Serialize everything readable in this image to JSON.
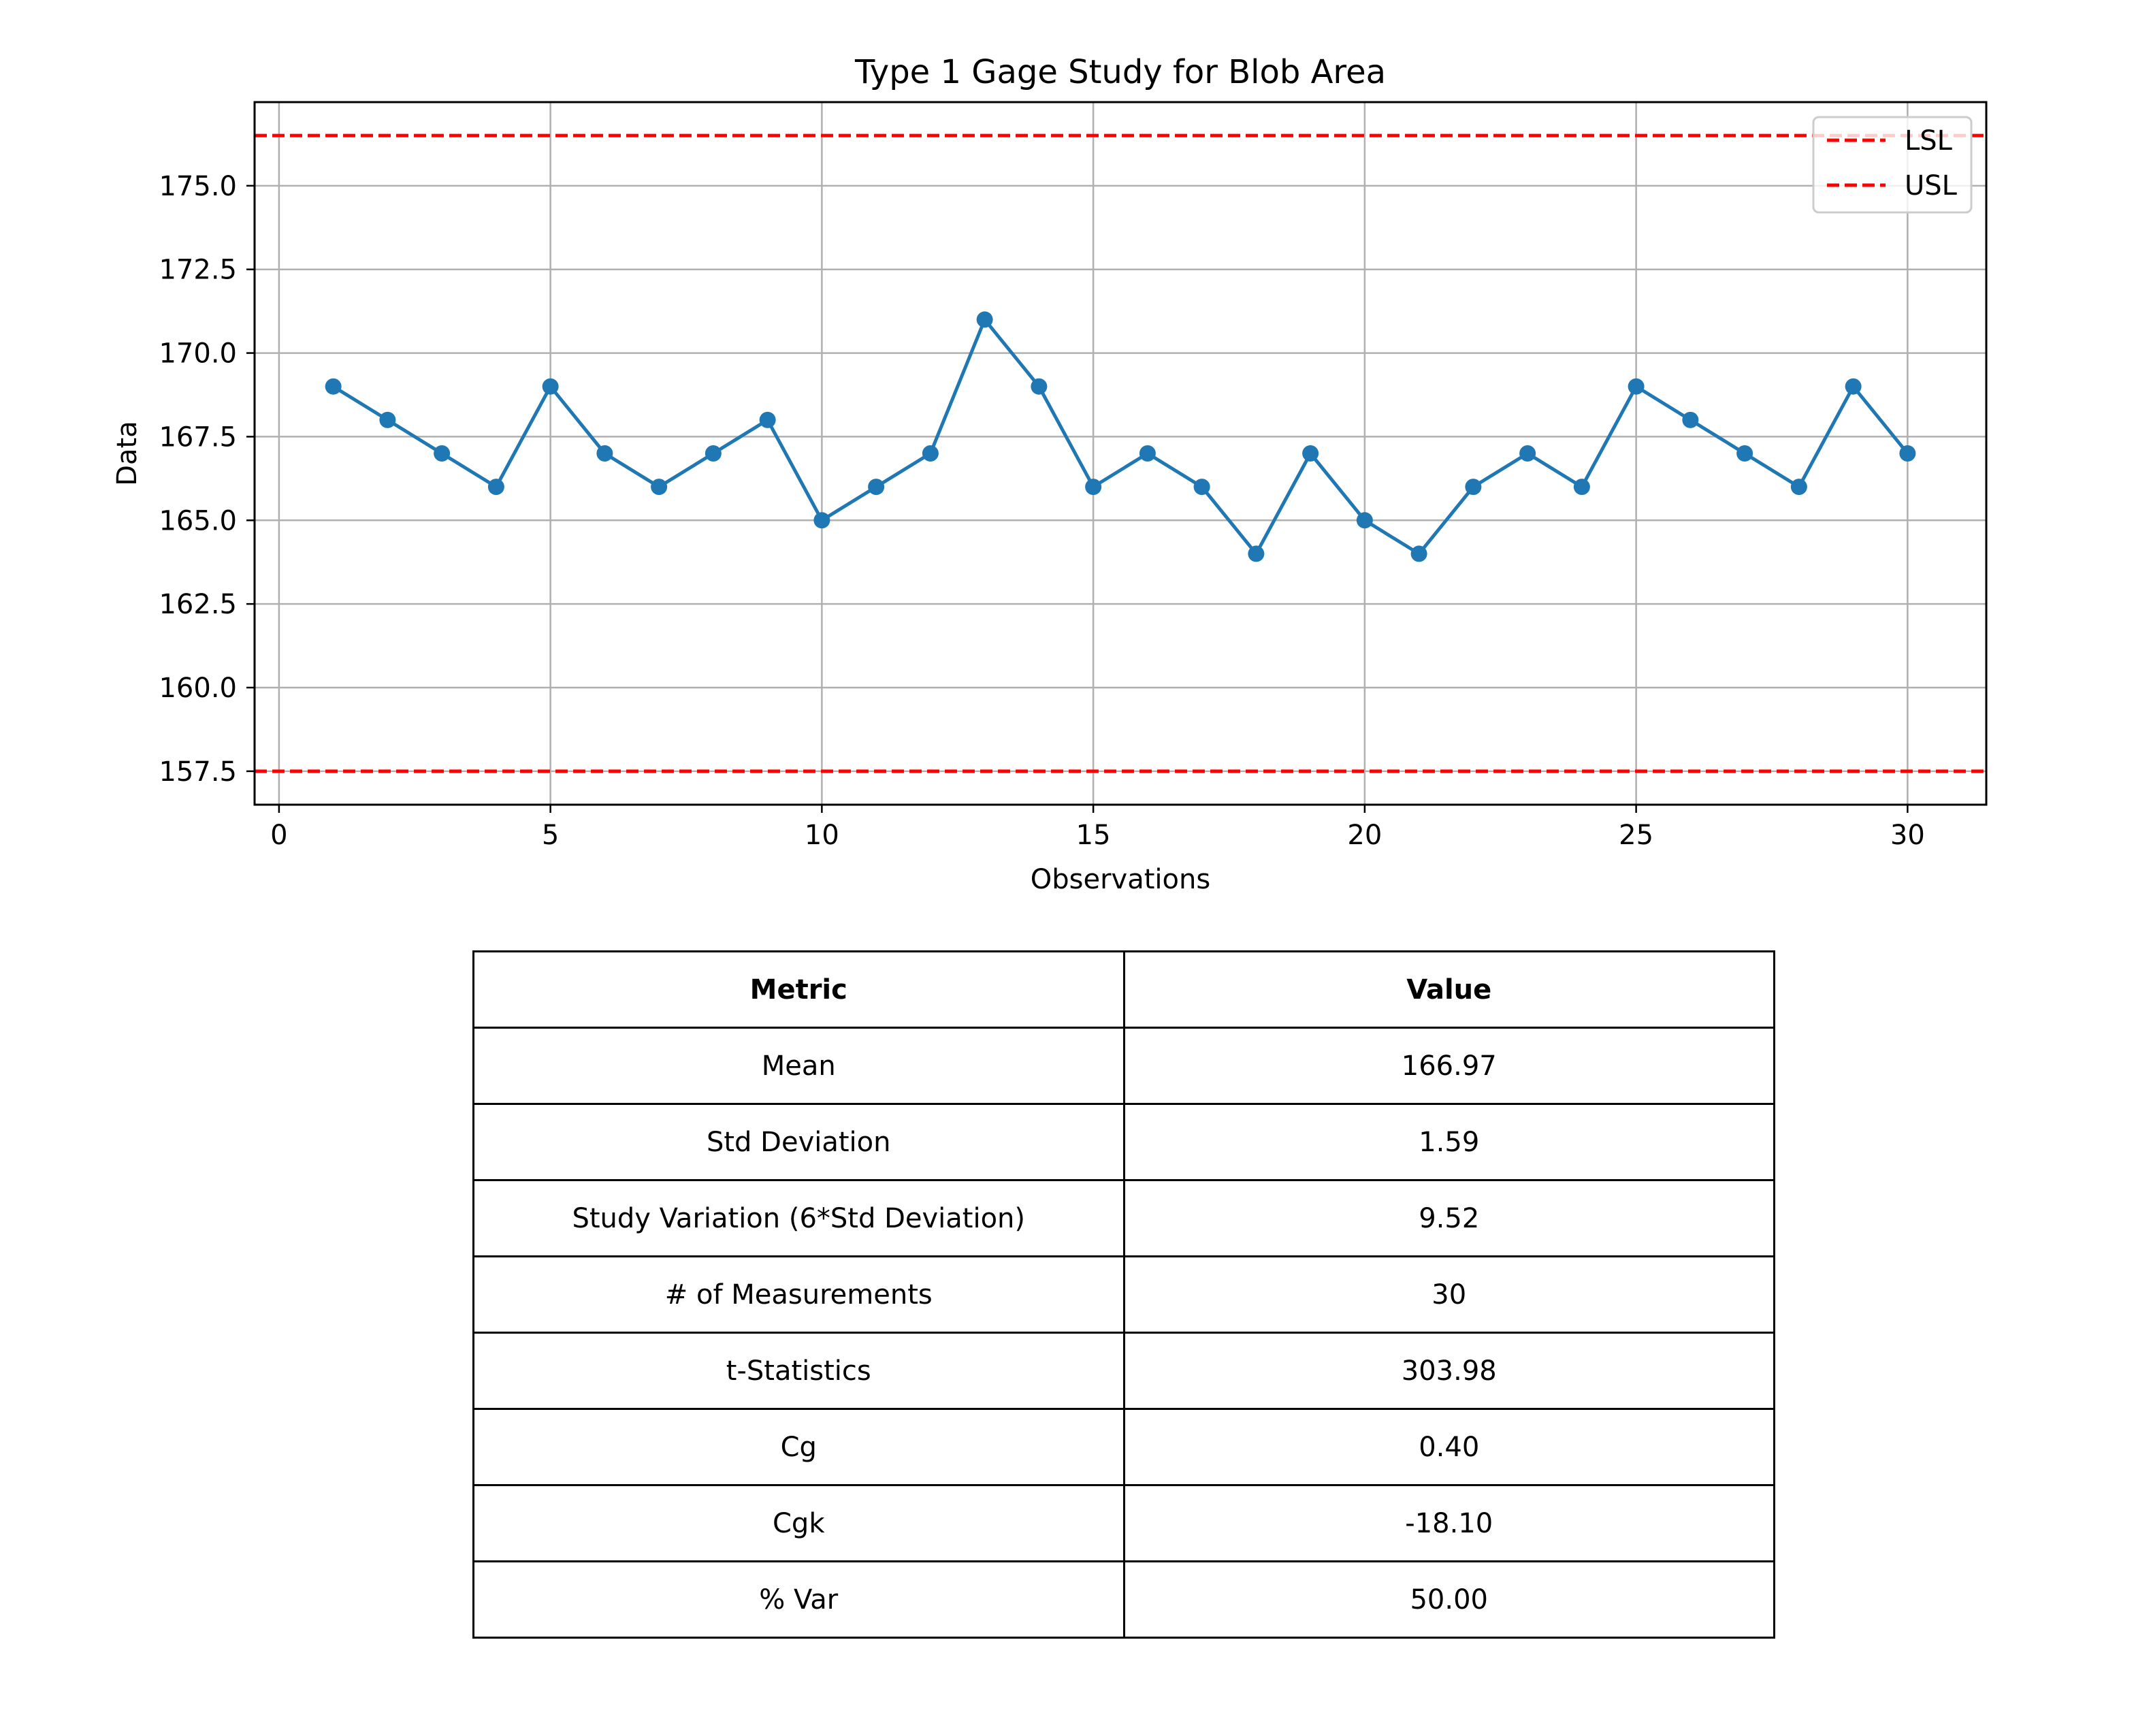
{
  "chart_data": {
    "type": "line",
    "title": "Type 1 Gage Study for Blob Area",
    "xlabel": "Observations",
    "ylabel": "Data",
    "xlim": [
      -0.45,
      31.45
    ],
    "ylim": [
      156.5,
      177.5
    ],
    "xticks": [
      0,
      5,
      10,
      15,
      20,
      25,
      30
    ],
    "xtick_labels": [
      "0",
      "5",
      "10",
      "15",
      "20",
      "25",
      "30"
    ],
    "yticks": [
      157.5,
      160.0,
      162.5,
      165.0,
      167.5,
      170.0,
      172.5,
      175.0
    ],
    "ytick_labels": [
      "157.5",
      "160.0",
      "162.5",
      "165.0",
      "167.5",
      "170.0",
      "172.5",
      "175.0"
    ],
    "grid": true,
    "legend_position": "top-right",
    "series": [
      {
        "name": "",
        "color": "#1f77b4",
        "marker": "circle",
        "x": [
          1,
          2,
          3,
          4,
          5,
          6,
          7,
          8,
          9,
          10,
          11,
          12,
          13,
          14,
          15,
          16,
          17,
          18,
          19,
          20,
          21,
          22,
          23,
          24,
          25,
          26,
          27,
          28,
          29,
          30
        ],
        "y": [
          169,
          168,
          167,
          166,
          169,
          167,
          166,
          167,
          168,
          165,
          166,
          167,
          171,
          169,
          166,
          167,
          166,
          164,
          167,
          165,
          164,
          166,
          167,
          166,
          169,
          168,
          167,
          166,
          169,
          167
        ]
      }
    ],
    "reference_lines": [
      {
        "name": "LSL",
        "y": 157.5,
        "color": "#ff0000",
        "style": "dashed"
      },
      {
        "name": "USL",
        "y": 176.5,
        "color": "#ff0000",
        "style": "dashed"
      }
    ]
  },
  "table": {
    "headers": [
      "Metric",
      "Value"
    ],
    "rows": [
      [
        "Mean",
        "166.97"
      ],
      [
        "Std Deviation",
        "1.59"
      ],
      [
        "Study Variation (6*Std Deviation)",
        "9.52"
      ],
      [
        "# of Measurements",
        "30"
      ],
      [
        "t-Statistics",
        "303.98"
      ],
      [
        "Cg",
        "0.40"
      ],
      [
        "Cgk",
        "-18.10"
      ],
      [
        "% Var",
        "50.00"
      ]
    ]
  }
}
